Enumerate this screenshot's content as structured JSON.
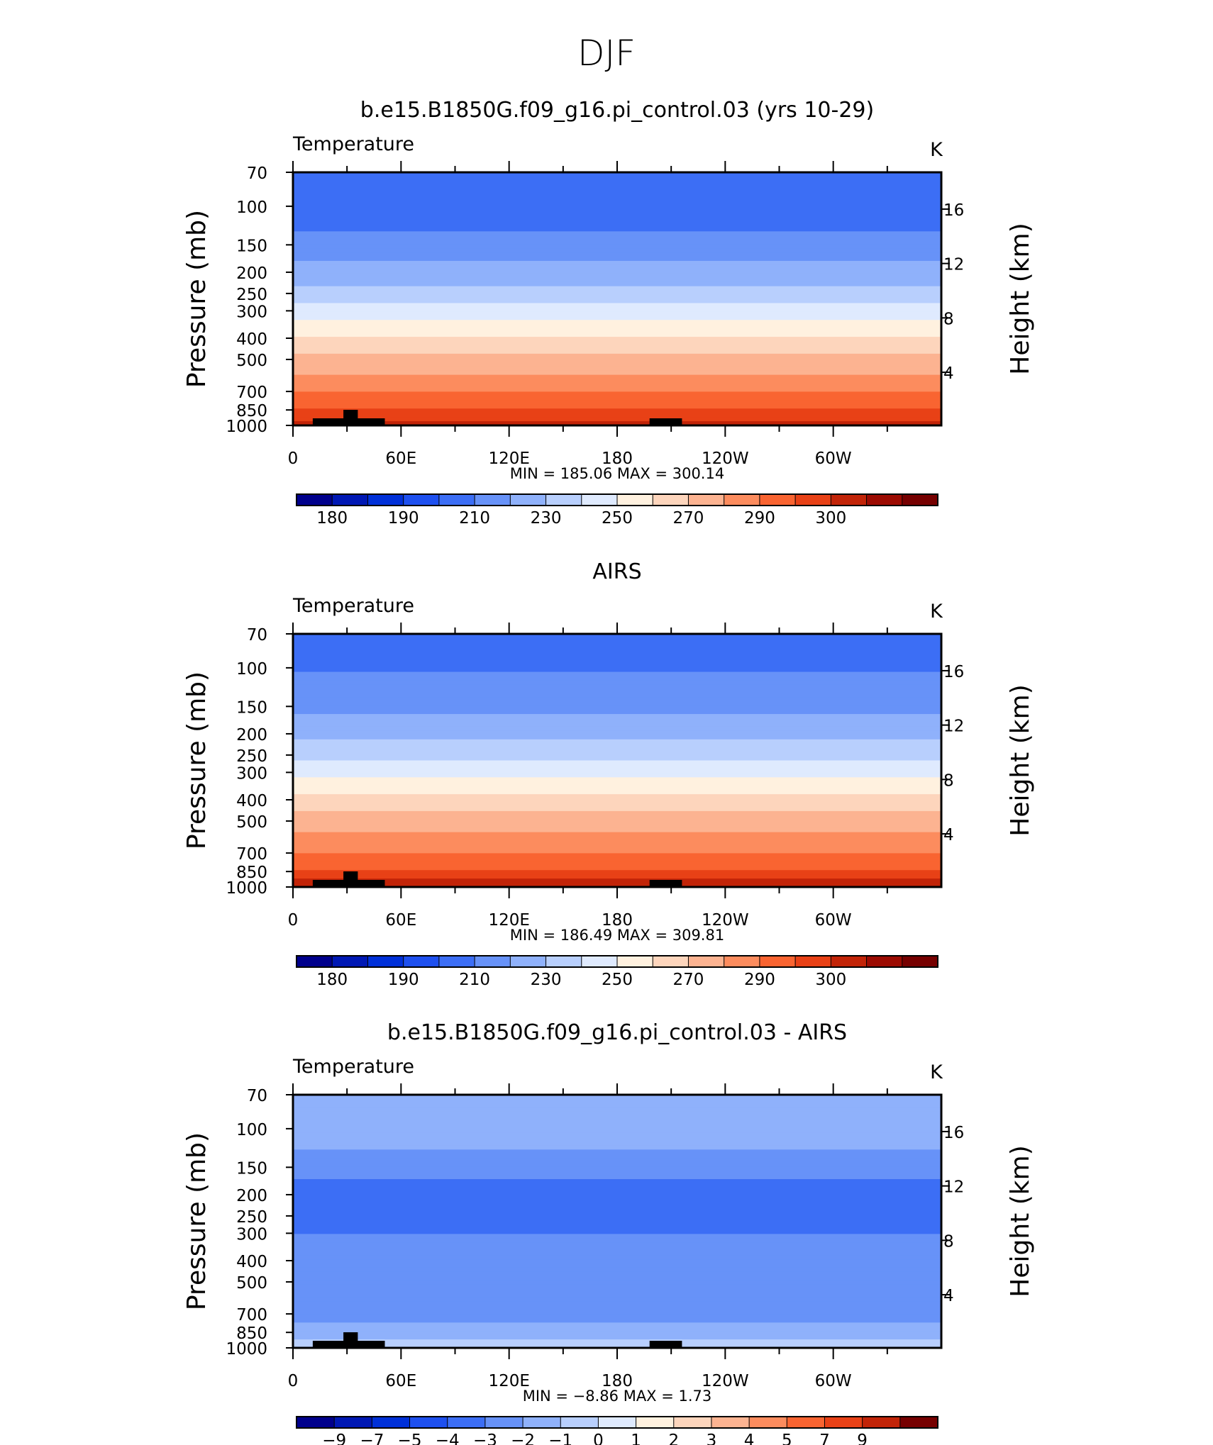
{
  "figure_title": "DJF",
  "colors": {
    "temp_levels": [
      "#00008c",
      "#0018b4",
      "#0030d8",
      "#1e50ef",
      "#3c6ef5",
      "#6792f8",
      "#8fb1fb",
      "#b8cffd",
      "#dfeafe",
      "#fff1df",
      "#fdd5bc",
      "#fcb391",
      "#fc8c5e",
      "#f96431",
      "#e84116",
      "#c22408",
      "#9c0b02",
      "#760000"
    ],
    "diff_levels": [
      "#00008c",
      "#0018b4",
      "#0030d8",
      "#1e50ef",
      "#3c6ef5",
      "#6792f8",
      "#8fb1fb",
      "#b8cffd",
      "#dfeafe",
      "#fff1df",
      "#fdd5bc",
      "#fcb391",
      "#fc8c5e",
      "#f96431",
      "#e84116",
      "#c22408",
      "#760000"
    ]
  },
  "chart_data": [
    {
      "type": "heatmap",
      "title": "b.e15.B1850G.f09_g16.pi_control.03 (yrs 10-29)",
      "left_label": "Temperature",
      "units": "K",
      "ylabel": "Pressure  (mb)",
      "ylabel_right": "Height  (km)",
      "yticks": [
        "70",
        "100",
        "150",
        "200",
        "250",
        "300",
        "400",
        "500",
        "700",
        "850",
        "1000"
      ],
      "yticks_right": [
        "16",
        "12",
        "8",
        "4"
      ],
      "xticks": [
        "0",
        "60E",
        "120E",
        "180",
        "120W",
        "60W"
      ],
      "stats": "MIN  =  185.06   MAX  =  300.14",
      "min": 185.06,
      "max": 300.14,
      "colorbar_labels": [
        "180",
        "190",
        "210",
        "230",
        "250",
        "270",
        "290",
        "300"
      ],
      "profile": [
        {
          "p": 70,
          "v": 196
        },
        {
          "p": 100,
          "v": 194
        },
        {
          "p": 150,
          "v": 204
        },
        {
          "p": 200,
          "v": 214
        },
        {
          "p": 250,
          "v": 224
        },
        {
          "p": 300,
          "v": 235
        },
        {
          "p": 400,
          "v": 252
        },
        {
          "p": 500,
          "v": 262
        },
        {
          "p": 700,
          "v": 280
        },
        {
          "p": 850,
          "v": 290
        },
        {
          "p": 1000,
          "v": 296
        }
      ]
    },
    {
      "type": "heatmap",
      "title": "AIRS",
      "left_label": "Temperature",
      "units": "K",
      "ylabel": "Pressure  (mb)",
      "ylabel_right": "Height  (km)",
      "yticks": [
        "70",
        "100",
        "150",
        "200",
        "250",
        "300",
        "400",
        "500",
        "700",
        "850",
        "1000"
      ],
      "yticks_right": [
        "16",
        "12",
        "8",
        "4"
      ],
      "xticks": [
        "0",
        "60E",
        "120E",
        "180",
        "120W",
        "60W"
      ],
      "stats": "MIN  =  186.49   MAX  =  309.81",
      "min": 186.49,
      "max": 309.81,
      "colorbar_labels": [
        "180",
        "190",
        "210",
        "230",
        "250",
        "270",
        "290",
        "300"
      ],
      "profile": [
        {
          "p": 70,
          "v": 200
        },
        {
          "p": 100,
          "v": 199
        },
        {
          "p": 150,
          "v": 207
        },
        {
          "p": 200,
          "v": 218
        },
        {
          "p": 250,
          "v": 228
        },
        {
          "p": 300,
          "v": 238
        },
        {
          "p": 400,
          "v": 254
        },
        {
          "p": 500,
          "v": 264
        },
        {
          "p": 700,
          "v": 281
        },
        {
          "p": 850,
          "v": 291
        },
        {
          "p": 1000,
          "v": 298
        }
      ]
    },
    {
      "type": "heatmap",
      "title": "b.e15.B1850G.f09_g16.pi_control.03 - AIRS",
      "left_label": "Temperature",
      "units": "K",
      "ylabel": "Pressure  (mb)",
      "ylabel_right": "Height  (km)",
      "yticks": [
        "70",
        "100",
        "150",
        "200",
        "250",
        "300",
        "400",
        "500",
        "700",
        "850",
        "1000"
      ],
      "yticks_right": [
        "16",
        "12",
        "8",
        "4"
      ],
      "xticks": [
        "0",
        "60E",
        "120E",
        "180",
        "120W",
        "60W"
      ],
      "stats": "MIN  =    −8.86   MAX  =      1.73",
      "min": -8.86,
      "max": 1.73,
      "colorbar_labels": [
        "−9",
        "−7",
        "−5",
        "−4",
        "−3",
        "−2",
        "−1",
        "0",
        "1",
        "2",
        "3",
        "4",
        "5",
        "7",
        "9"
      ],
      "profile": [
        {
          "p": 70,
          "v": -1.5
        },
        {
          "p": 100,
          "v": -1.3
        },
        {
          "p": 150,
          "v": -2.5
        },
        {
          "p": 200,
          "v": -3.6
        },
        {
          "p": 250,
          "v": -3.3
        },
        {
          "p": 300,
          "v": -3.0
        },
        {
          "p": 400,
          "v": -2.8
        },
        {
          "p": 500,
          "v": -2.7
        },
        {
          "p": 700,
          "v": -2.4
        },
        {
          "p": 850,
          "v": -1.5
        },
        {
          "p": 1000,
          "v": -0.6
        }
      ]
    }
  ]
}
